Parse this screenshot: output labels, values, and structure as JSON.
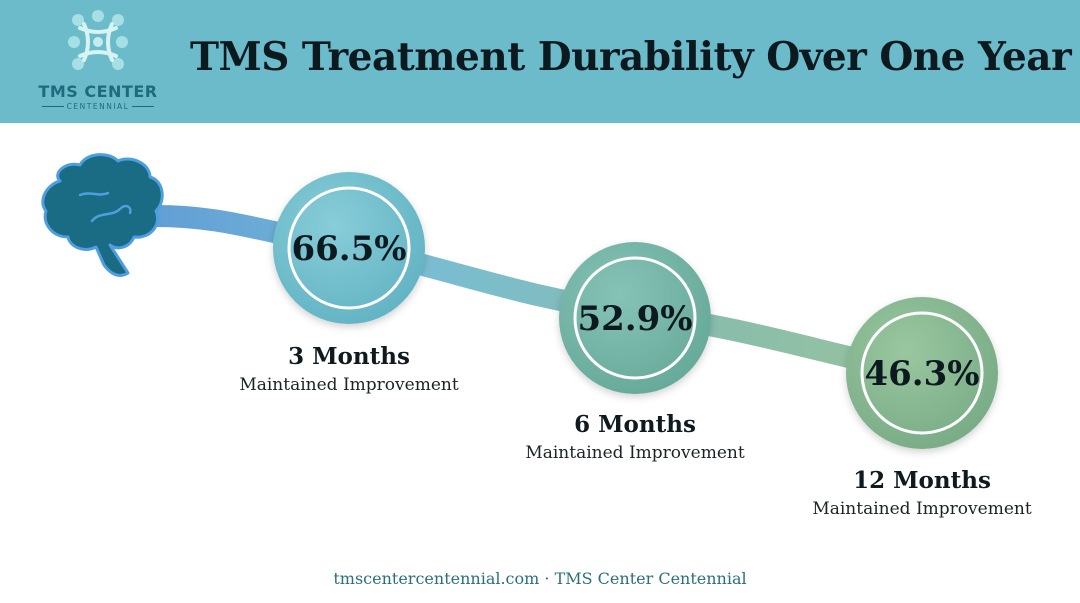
{
  "header": {
    "title": "TMS Treatment Durability Over One Year",
    "logo": {
      "name": "TMS CENTER",
      "sub": "CENTENNIAL"
    }
  },
  "milestones": [
    {
      "value": "66.5%",
      "month": "3 Months",
      "desc": "Maintained Improvement"
    },
    {
      "value": "52.9%",
      "month": "6 Months",
      "desc": "Maintained Improvement"
    },
    {
      "value": "46.3%",
      "month": "12 Months",
      "desc": "Maintained Improvement"
    }
  ],
  "footer": {
    "text": "tmscentercentennial.com · TMS Center Centennial"
  },
  "colors": {
    "header_bg": "#6cbbcb",
    "title": "#0c1a20",
    "brain": "#1a6b84",
    "circle_1": "#6dbccb",
    "circle_2": "#6fae9f",
    "circle_3": "#82b28c"
  }
}
